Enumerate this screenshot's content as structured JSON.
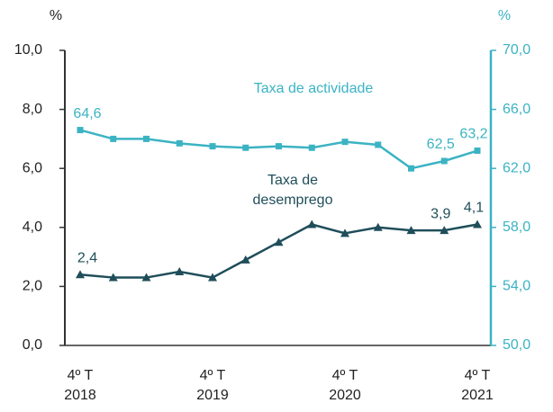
{
  "chart_data": {
    "type": "line",
    "ylabel": "%",
    "y2label": "%",
    "categories": [
      "4º T 2018",
      null,
      null,
      null,
      "4º T 2019",
      null,
      null,
      null,
      "4º T 2020",
      null,
      null,
      null,
      "4º T 2021"
    ],
    "series": [
      {
        "name": "Taxa de desemprego",
        "color": "#1f4e5a",
        "marker": "triangle",
        "values": [
          2.4,
          2.3,
          2.3,
          2.5,
          2.3,
          2.9,
          3.5,
          4.1,
          3.8,
          4.0,
          3.9,
          3.9,
          4.1
        ],
        "value_labels": [
          "2,4",
          null,
          null,
          null,
          null,
          null,
          null,
          null,
          null,
          null,
          null,
          "3,9",
          "4,1"
        ]
      },
      {
        "name": "Taxa de actividade",
        "color": "#3bb3c3",
        "marker": "square",
        "axis": "y2",
        "values": [
          64.6,
          64.0,
          64.0,
          63.7,
          63.5,
          63.4,
          63.5,
          63.4,
          63.8,
          63.6,
          62.0,
          62.5,
          63.2
        ],
        "value_labels": [
          "64,6",
          null,
          null,
          null,
          null,
          null,
          null,
          null,
          null,
          null,
          null,
          "62,5",
          "63,2"
        ]
      }
    ],
    "ylim": [
      0,
      10
    ],
    "yticks": [
      {
        "value": 0,
        "label": "0,0"
      },
      {
        "value": 2,
        "label": "2,0"
      },
      {
        "value": 4,
        "label": "4,0"
      },
      {
        "value": 6,
        "label": "6,0"
      },
      {
        "value": 8,
        "label": "8,0"
      },
      {
        "value": 10,
        "label": "10,0"
      }
    ],
    "y2lim": [
      50,
      70
    ],
    "y2ticks": [
      {
        "value": 50,
        "label": "50,0"
      },
      {
        "value": 54,
        "label": "54,0"
      },
      {
        "value": 58,
        "label": "58,0"
      },
      {
        "value": 62,
        "label": "62,0"
      },
      {
        "value": 66,
        "label": "66,0"
      },
      {
        "value": 70,
        "label": "70,0"
      }
    ],
    "grid": false
  }
}
